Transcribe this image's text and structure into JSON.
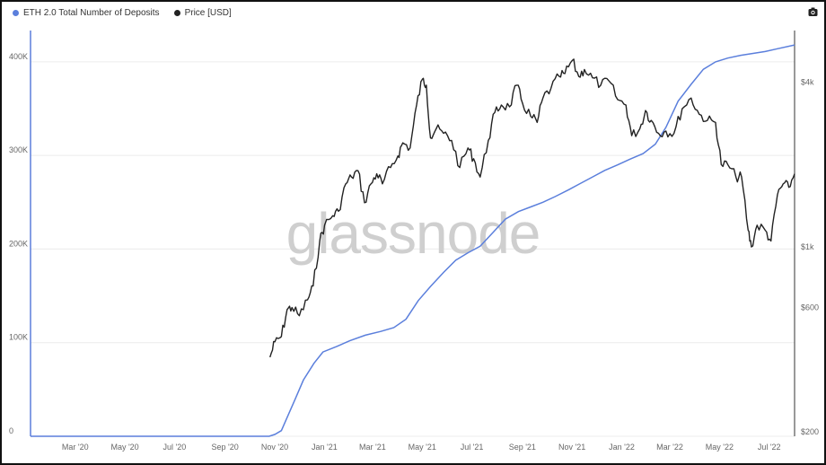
{
  "legend": {
    "series1_label": "ETH 2.0 Total Number of Deposits",
    "series2_label": "Price [USD]"
  },
  "watermark": "glassnode",
  "colors": {
    "deposits": "#5b7fdc",
    "price": "#222222",
    "grid": "#ececec"
  },
  "chart_data": {
    "type": "line",
    "x_ticks": [
      "Mar '20",
      "May '20",
      "Jul '20",
      "Sep '20",
      "Nov '20",
      "Jan '21",
      "Mar '21",
      "May '21",
      "Jul '21",
      "Sep '21",
      "Nov '21",
      "Jan '22",
      "Mar '22",
      "May '22",
      "Jul '22"
    ],
    "y_left_ticks": [
      "0",
      "100K",
      "200K",
      "300K",
      "400K"
    ],
    "y_left_range": [
      0,
      420000
    ],
    "y_right_ticks": [
      "$200",
      "$600",
      "$1k",
      "$4k"
    ],
    "y_right_scale": "log",
    "y_right_range": [
      200,
      5000
    ],
    "x_range": [
      "2020-01-15",
      "2022-08-10"
    ],
    "grid": true,
    "series": [
      {
        "name": "ETH 2.0 Total Number of Deposits",
        "axis": "left",
        "points": [
          [
            "2020-11-03",
            0
          ],
          [
            "2020-11-10",
            2000
          ],
          [
            "2020-11-18",
            6000
          ],
          [
            "2020-11-25",
            20000
          ],
          [
            "2020-12-05",
            40000
          ],
          [
            "2020-12-15",
            60000
          ],
          [
            "2020-12-28",
            78000
          ],
          [
            "2021-01-08",
            90000
          ],
          [
            "2021-01-25",
            96000
          ],
          [
            "2021-02-10",
            102000
          ],
          [
            "2021-03-01",
            108000
          ],
          [
            "2021-03-20",
            112000
          ],
          [
            "2021-04-05",
            116000
          ],
          [
            "2021-04-20",
            125000
          ],
          [
            "2021-05-05",
            145000
          ],
          [
            "2021-05-20",
            160000
          ],
          [
            "2021-06-05",
            175000
          ],
          [
            "2021-06-20",
            188000
          ],
          [
            "2021-07-05",
            196000
          ],
          [
            "2021-07-20",
            203000
          ],
          [
            "2021-08-05",
            218000
          ],
          [
            "2021-08-20",
            232000
          ],
          [
            "2021-09-05",
            240000
          ],
          [
            "2021-09-20",
            245000
          ],
          [
            "2021-10-05",
            250000
          ],
          [
            "2021-10-20",
            256000
          ],
          [
            "2021-11-05",
            263000
          ],
          [
            "2021-11-20",
            270000
          ],
          [
            "2021-12-05",
            277000
          ],
          [
            "2021-12-20",
            284000
          ],
          [
            "2022-01-05",
            290000
          ],
          [
            "2022-01-20",
            296000
          ],
          [
            "2022-02-05",
            302000
          ],
          [
            "2022-02-20",
            312000
          ],
          [
            "2022-03-05",
            330000
          ],
          [
            "2022-03-20",
            358000
          ],
          [
            "2022-04-05",
            376000
          ],
          [
            "2022-04-20",
            392000
          ],
          [
            "2022-05-05",
            400000
          ],
          [
            "2022-05-20",
            404000
          ],
          [
            "2022-06-05",
            407000
          ],
          [
            "2022-06-20",
            409000
          ],
          [
            "2022-07-05",
            411000
          ],
          [
            "2022-07-20",
            414000
          ],
          [
            "2022-08-10",
            418000
          ]
        ]
      },
      {
        "name": "Price [USD]",
        "axis": "right",
        "points": [
          [
            "2020-11-04",
            395
          ],
          [
            "2020-11-10",
            450
          ],
          [
            "2020-11-18",
            470
          ],
          [
            "2020-11-25",
            590
          ],
          [
            "2020-12-01",
            600
          ],
          [
            "2020-12-10",
            560
          ],
          [
            "2020-12-20",
            640
          ],
          [
            "2020-12-27",
            720
          ],
          [
            "2021-01-04",
            1050
          ],
          [
            "2021-01-10",
            1200
          ],
          [
            "2021-01-20",
            1300
          ],
          [
            "2021-01-27",
            1350
          ],
          [
            "2021-02-05",
            1700
          ],
          [
            "2021-02-12",
            1800
          ],
          [
            "2021-02-20",
            1900
          ],
          [
            "2021-02-28",
            1450
          ],
          [
            "2021-03-08",
            1700
          ],
          [
            "2021-03-15",
            1850
          ],
          [
            "2021-03-22",
            1700
          ],
          [
            "2021-04-01",
            1950
          ],
          [
            "2021-04-10",
            2150
          ],
          [
            "2021-04-16",
            2400
          ],
          [
            "2021-04-25",
            2300
          ],
          [
            "2021-05-03",
            3300
          ],
          [
            "2021-05-10",
            4100
          ],
          [
            "2021-05-15",
            3900
          ],
          [
            "2021-05-20",
            2500
          ],
          [
            "2021-05-27",
            2700
          ],
          [
            "2021-06-05",
            2600
          ],
          [
            "2021-06-15",
            2450
          ],
          [
            "2021-06-25",
            1950
          ],
          [
            "2021-07-05",
            2300
          ],
          [
            "2021-07-12",
            2100
          ],
          [
            "2021-07-20",
            1800
          ],
          [
            "2021-07-30",
            2450
          ],
          [
            "2021-08-07",
            3100
          ],
          [
            "2021-08-15",
            3300
          ],
          [
            "2021-08-25",
            3250
          ],
          [
            "2021-09-03",
            3900
          ],
          [
            "2021-09-10",
            3350
          ],
          [
            "2021-09-20",
            3000
          ],
          [
            "2021-09-28",
            2850
          ],
          [
            "2021-10-05",
            3500
          ],
          [
            "2021-10-15",
            3800
          ],
          [
            "2021-10-25",
            4200
          ],
          [
            "2021-11-01",
            4300
          ],
          [
            "2021-11-10",
            4800
          ],
          [
            "2021-11-18",
            4200
          ],
          [
            "2021-11-25",
            4450
          ],
          [
            "2021-12-05",
            4150
          ],
          [
            "2021-12-15",
            3900
          ],
          [
            "2021-12-25",
            4050
          ],
          [
            "2022-01-05",
            3450
          ],
          [
            "2022-01-15",
            3300
          ],
          [
            "2022-01-22",
            2550
          ],
          [
            "2022-02-01",
            2700
          ],
          [
            "2022-02-08",
            3150
          ],
          [
            "2022-02-15",
            2900
          ],
          [
            "2022-02-24",
            2600
          ],
          [
            "2022-03-05",
            2650
          ],
          [
            "2022-03-15",
            2600
          ],
          [
            "2022-03-25",
            3200
          ],
          [
            "2022-04-05",
            3500
          ],
          [
            "2022-04-15",
            3050
          ],
          [
            "2022-04-25",
            2900
          ],
          [
            "2022-05-05",
            2850
          ],
          [
            "2022-05-12",
            2000
          ],
          [
            "2022-05-20",
            2000
          ],
          [
            "2022-05-30",
            1800
          ],
          [
            "2022-06-06",
            1800
          ],
          [
            "2022-06-14",
            1150
          ],
          [
            "2022-06-18",
            1000
          ],
          [
            "2022-06-25",
            1200
          ],
          [
            "2022-07-05",
            1150
          ],
          [
            "2022-07-12",
            1050
          ],
          [
            "2022-07-20",
            1550
          ],
          [
            "2022-07-27",
            1700
          ],
          [
            "2022-08-03",
            1650
          ],
          [
            "2022-08-10",
            1850
          ]
        ]
      }
    ]
  }
}
